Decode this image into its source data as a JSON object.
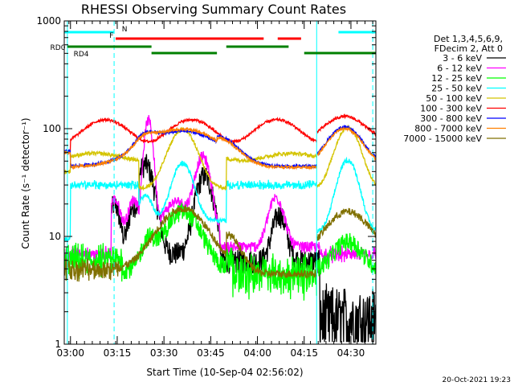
{
  "chart_data": {
    "type": "line",
    "title": "RHESSI Observing Summary Count Rates",
    "xlabel": "Start Time (10-Sep-04 02:56:02)",
    "ylabel": "Count Rate (s⁻¹ detector⁻¹)",
    "yscale": "log",
    "ylim": [
      1,
      1000
    ],
    "xlim_minutes": [
      -2,
      98
    ],
    "x_ticks": [
      "03:00",
      "03:15",
      "03:30",
      "03:45",
      "04:00",
      "04:15",
      "04:30"
    ],
    "y_ticks": [
      "1",
      "10",
      "100",
      "1000"
    ],
    "date_stamp": "20-Oct-2021 19:23",
    "legend": {
      "header_lines": [
        "Det 1,3,4,5,6,9,",
        "FDecim 2, Att 0"
      ],
      "placement": "right"
    },
    "series": [
      {
        "name": "3 - 6 keV",
        "color": "#000000"
      },
      {
        "name": "6 - 12 keV",
        "color": "#ff00ff"
      },
      {
        "name": "12 - 25 keV",
        "color": "#00ff00"
      },
      {
        "name": "25 - 50 keV",
        "color": "#00ffff"
      },
      {
        "name": "50 - 100 keV",
        "color": "#d4c400"
      },
      {
        "name": "100 - 300 keV",
        "color": "#ff0000"
      },
      {
        "name": "300 - 800 keV",
        "color": "#0000ff"
      },
      {
        "name": "800 - 7000 keV",
        "color": "#ff8000"
      },
      {
        "name": "7000 - 15000 keV",
        "color": "#807000"
      }
    ],
    "flags": [
      {
        "label": "N",
        "color": "#00ffff",
        "row": 1,
        "label_at": 16.5,
        "segments": [
          [
            -2,
            14
          ],
          [
            86,
            98
          ]
        ]
      },
      {
        "label": "F",
        "color": "#ff0000",
        "row": 2,
        "label_at": 12.5,
        "segments": [
          [
            14.5,
            62
          ],
          [
            66.5,
            74
          ]
        ]
      },
      {
        "label": "RD0",
        "color": "#008000",
        "row": 3,
        "label_at": -6.5,
        "segments": [
          [
            -1,
            26
          ],
          [
            50,
            70
          ]
        ]
      },
      {
        "label": "RD4",
        "color": "#008000",
        "row": 4,
        "label_at": 1,
        "segments": [
          [
            26,
            47
          ],
          [
            75,
            98
          ]
        ]
      }
    ],
    "vertical_lines": {
      "solid": [
        -1,
        79
      ],
      "dashed": [
        14,
        97
      ]
    }
  }
}
